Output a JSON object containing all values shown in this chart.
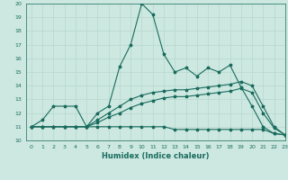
{
  "xlabel": "Humidex (Indice chaleur)",
  "xlim": [
    -0.5,
    23
  ],
  "ylim": [
    10,
    20
  ],
  "xticks": [
    0,
    1,
    2,
    3,
    4,
    5,
    6,
    7,
    8,
    9,
    10,
    11,
    12,
    13,
    14,
    15,
    16,
    17,
    18,
    19,
    20,
    21,
    22,
    23
  ],
  "yticks": [
    10,
    11,
    12,
    13,
    14,
    15,
    16,
    17,
    18,
    19,
    20
  ],
  "background_color": "#cce8e0",
  "grid_color": "#b8d8d0",
  "line_color": "#1a6b5e",
  "line1_y": [
    11.0,
    11.5,
    12.5,
    12.5,
    12.5,
    11.0,
    12.0,
    12.5,
    15.4,
    17.0,
    20.0,
    19.2,
    16.3,
    15.0,
    15.3,
    14.7,
    15.3,
    15.0,
    15.5,
    13.9,
    12.5,
    11.0,
    10.5,
    10.4
  ],
  "line2_y": [
    11.0,
    11.0,
    11.0,
    11.0,
    11.0,
    11.0,
    11.5,
    12.0,
    12.5,
    13.0,
    13.3,
    13.5,
    13.6,
    13.7,
    13.7,
    13.8,
    13.9,
    14.0,
    14.1,
    14.3,
    14.0,
    12.5,
    11.0,
    10.4
  ],
  "line3_y": [
    11.0,
    11.0,
    11.0,
    11.0,
    11.0,
    11.0,
    11.3,
    11.7,
    12.0,
    12.4,
    12.7,
    12.9,
    13.1,
    13.2,
    13.2,
    13.3,
    13.4,
    13.5,
    13.6,
    13.8,
    13.5,
    12.0,
    10.9,
    10.4
  ],
  "line4_y": [
    11.0,
    11.0,
    11.0,
    11.0,
    11.0,
    11.0,
    11.0,
    11.0,
    11.0,
    11.0,
    11.0,
    11.0,
    11.0,
    10.8,
    10.8,
    10.8,
    10.8,
    10.8,
    10.8,
    10.8,
    10.8,
    10.8,
    10.5,
    10.4
  ],
  "marker": "*",
  "markersize": 2.5,
  "linewidth": 0.8
}
